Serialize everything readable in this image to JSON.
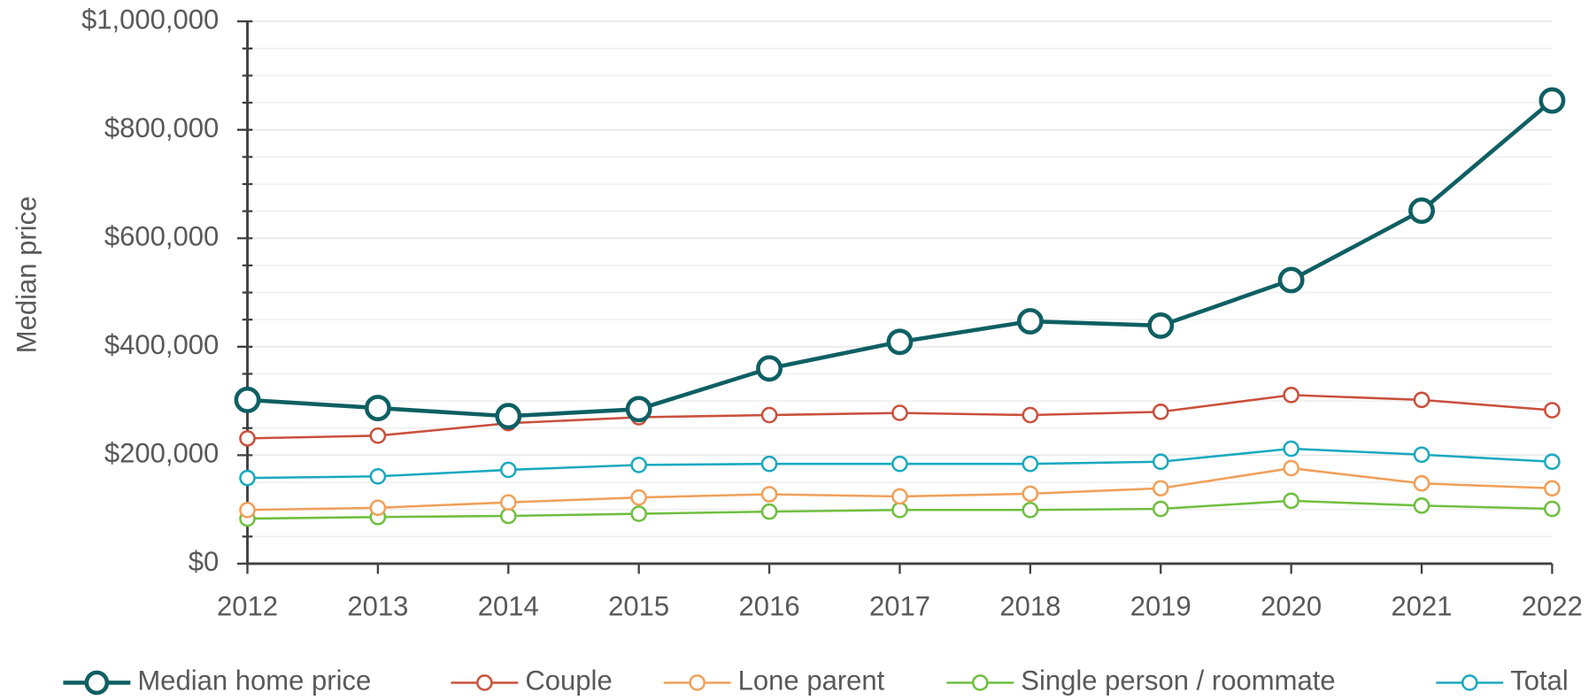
{
  "chart_data": {
    "type": "line",
    "y_axis_label": "Median price",
    "categories": [
      "2012",
      "2013",
      "2014",
      "2015",
      "2016",
      "2017",
      "2018",
      "2019",
      "2020",
      "2021",
      "2022"
    ],
    "series": [
      {
        "name": "Median home price",
        "color": "#0e5f63",
        "values": [
          302000,
          287000,
          272000,
          285000,
          360000,
          409000,
          447000,
          439000,
          523000,
          651000,
          854000
        ]
      },
      {
        "name": "Couple",
        "color": "#c9503c",
        "values": [
          231000,
          236000,
          259000,
          270000,
          274000,
          278000,
          274000,
          280000,
          311000,
          302000,
          283000
        ]
      },
      {
        "name": "Lone parent",
        "color": "#f0a05a",
        "values": [
          99000,
          103000,
          113000,
          122000,
          128000,
          124000,
          129000,
          139000,
          176000,
          148000,
          139000
        ]
      },
      {
        "name": "Single person / roommate",
        "color": "#6fbf3f",
        "values": [
          83000,
          86000,
          88000,
          92000,
          96000,
          99000,
          99000,
          101000,
          116000,
          107000,
          101000
        ]
      },
      {
        "name": "Total",
        "color": "#1aa9bf",
        "values": [
          158000,
          161000,
          173000,
          182000,
          184000,
          184000,
          184000,
          188000,
          212000,
          201000,
          188000
        ]
      }
    ],
    "ylim": [
      0,
      1000000
    ],
    "yticks": [
      {
        "value": 0,
        "label": "$0"
      },
      {
        "value": 200000,
        "label": "$200,000"
      },
      {
        "value": 400000,
        "label": "$400,000"
      },
      {
        "value": 600000,
        "label": "$600,000"
      },
      {
        "value": 800000,
        "label": "$800,000"
      },
      {
        "value": 1000000,
        "label": "$1,000,000"
      }
    ],
    "minor_yticks": [
      50000,
      100000,
      150000,
      250000,
      300000,
      350000,
      450000,
      500000,
      550000,
      650000,
      700000,
      750000,
      850000,
      900000,
      950000
    ],
    "grid": true,
    "legend": "bottom"
  }
}
